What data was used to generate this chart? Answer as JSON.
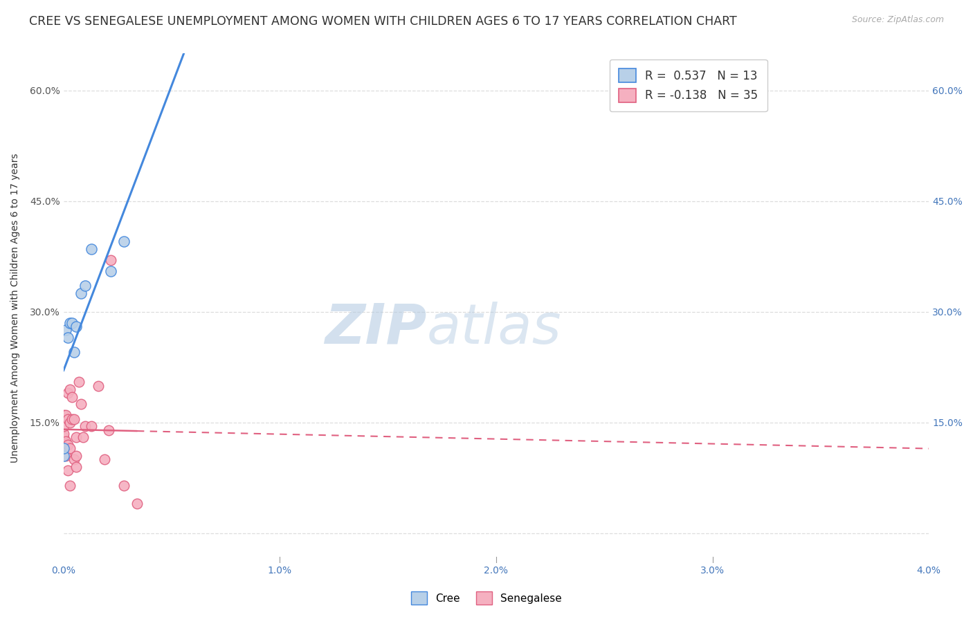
{
  "title": "CREE VS SENEGALESE UNEMPLOYMENT AMONG WOMEN WITH CHILDREN AGES 6 TO 17 YEARS CORRELATION CHART",
  "source": "Source: ZipAtlas.com",
  "ylabel": "Unemployment Among Women with Children Ages 6 to 17 years",
  "xlim": [
    0.0,
    0.04
  ],
  "ylim": [
    -0.04,
    0.65
  ],
  "xticks": [
    0.0,
    0.01,
    0.02,
    0.03,
    0.04
  ],
  "xtick_labels": [
    "0.0%",
    "1.0%",
    "2.0%",
    "3.0%",
    "4.0%"
  ],
  "yticks": [
    0.0,
    0.15,
    0.3,
    0.45,
    0.6
  ],
  "ytick_labels_left": [
    "",
    "15.0%",
    "30.0%",
    "45.0%",
    "60.0%"
  ],
  "ytick_labels_right": [
    "",
    "15.0%",
    "30.0%",
    "45.0%",
    "60.0%"
  ],
  "cree_color": "#b8d0e8",
  "senegalese_color": "#f5b0c0",
  "cree_line_color": "#4488dd",
  "senegalese_line_color": "#e06080",
  "background_color": "#ffffff",
  "watermark_text": "ZIPatlas",
  "watermark_color": "#c5d8ec",
  "cree_R": 0.537,
  "cree_N": 13,
  "senegalese_R": -0.138,
  "senegalese_N": 35,
  "cree_x": [
    0.0,
    0.0,
    0.0001,
    0.0002,
    0.0003,
    0.0004,
    0.0005,
    0.0006,
    0.0008,
    0.001,
    0.0013,
    0.0022,
    0.0028
  ],
  "cree_y": [
    0.105,
    0.115,
    0.275,
    0.265,
    0.285,
    0.285,
    0.245,
    0.28,
    0.325,
    0.335,
    0.385,
    0.355,
    0.395
  ],
  "senegalese_x": [
    0.0,
    0.0,
    0.0,
    0.0,
    0.0,
    0.0,
    0.0001,
    0.0001,
    0.0001,
    0.0002,
    0.0002,
    0.0002,
    0.0002,
    0.0003,
    0.0003,
    0.0003,
    0.0003,
    0.0004,
    0.0004,
    0.0005,
    0.0005,
    0.0006,
    0.0006,
    0.0006,
    0.0007,
    0.0008,
    0.0009,
    0.001,
    0.0013,
    0.0016,
    0.0019,
    0.0021,
    0.0022,
    0.0028,
    0.0034
  ],
  "senegalese_y": [
    0.115,
    0.125,
    0.13,
    0.135,
    0.145,
    0.16,
    0.105,
    0.125,
    0.16,
    0.085,
    0.12,
    0.155,
    0.19,
    0.065,
    0.115,
    0.15,
    0.195,
    0.155,
    0.185,
    0.1,
    0.155,
    0.09,
    0.105,
    0.13,
    0.205,
    0.175,
    0.13,
    0.145,
    0.145,
    0.2,
    0.1,
    0.14,
    0.37,
    0.065,
    0.04
  ],
  "marker_size": 110,
  "marker_size_cree": 120,
  "grid_color": "#dddddd",
  "title_fontsize": 12.5,
  "axis_label_fontsize": 10,
  "tick_fontsize": 10,
  "legend_fontsize": 12
}
